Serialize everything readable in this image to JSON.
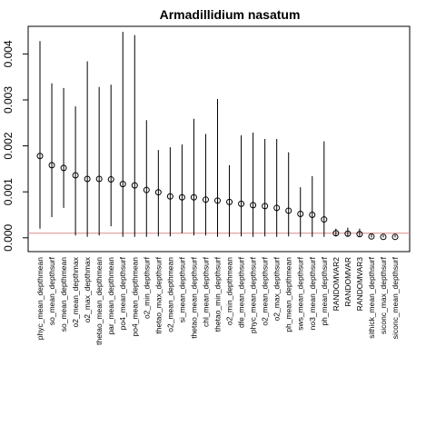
{
  "chart_data": {
    "type": "scatter",
    "title": "Armadillidium nasatum",
    "xlabel": "",
    "ylabel": "",
    "ylim": [
      -0.0003,
      0.0046
    ],
    "yticks": [
      "0.000",
      "0.001",
      "0.002",
      "0.003",
      "0.004"
    ],
    "ytick_values": [
      0,
      0.001,
      0.002,
      0.003,
      0.004
    ],
    "reference_line": 0.0001,
    "reference_color": "#d98a8a",
    "categories": [
      "phyc_mean_depthmean",
      "so_mean_depthsurf",
      "so_mean_depthmean",
      "o2_mean_depthmax",
      "o2_max_depthmax",
      "thetao_mean_depthmean",
      "par_mean_depthmean",
      "po4_mean_depthsurf",
      "po4_mean_depthmean",
      "o2_min_depthsurf",
      "thetao_max_depthsurf",
      "o2_mean_depthmean",
      "si_mean_depthsurf",
      "thetao_mean_depthsurf",
      "chl_mean_depthsurf",
      "thetao_min_depthsurf",
      "o2_min_depthmean",
      "dfe_mean_depthsurf",
      "phyc_mean_depthsurf",
      "o2_mean_depthsurf",
      "o2_max_depthsurf",
      "ph_mean_depthmean",
      "sws_mean_depthsurf",
      "no3_mean_depthsurf",
      "ph_mean_depthsurf",
      "RANDOMVAR2",
      "RANDOMVAR",
      "RANDOMVAR3",
      "sithick_mean_depthsurf",
      "siconc_max_depthsurf",
      "siconc_mean_depthsurf"
    ],
    "values": [
      0.00178,
      0.00158,
      0.00152,
      0.00136,
      0.00128,
      0.00128,
      0.00127,
      0.00117,
      0.00114,
      0.00104,
      0.00099,
      0.0009,
      0.00088,
      0.00088,
      0.00083,
      0.00081,
      0.00078,
      0.00074,
      0.00071,
      0.00069,
      0.00065,
      0.00059,
      0.00052,
      0.0005,
      0.0004,
      0.0001,
      9e-05,
      8e-05,
      3e-05,
      2e-05,
      2e-05
    ],
    "lower": [
      0.0002,
      0.00045,
      0.00065,
      5e-05,
      2e-05,
      5e-05,
      0.00025,
      2e-05,
      2e-05,
      2e-05,
      3e-05,
      3e-05,
      0.0001,
      5e-05,
      5e-05,
      2e-05,
      2e-05,
      3e-05,
      2e-05,
      3e-05,
      2e-05,
      3e-05,
      2e-05,
      2e-05,
      2e-05,
      3e-05,
      3e-05,
      3e-05,
      1e-05,
      1e-05,
      1e-05
    ],
    "upper": [
      0.00428,
      0.00336,
      0.00326,
      0.00286,
      0.00384,
      0.00328,
      0.00333,
      0.00448,
      0.00441,
      0.00256,
      0.00191,
      0.00197,
      0.00203,
      0.00259,
      0.00226,
      0.00302,
      0.00158,
      0.00223,
      0.00229,
      0.00215,
      0.00215,
      0.00186,
      0.0011,
      0.00134,
      0.0021,
      0.0002,
      0.00022,
      0.0002,
      8e-05,
      6e-05,
      6e-05
    ]
  }
}
